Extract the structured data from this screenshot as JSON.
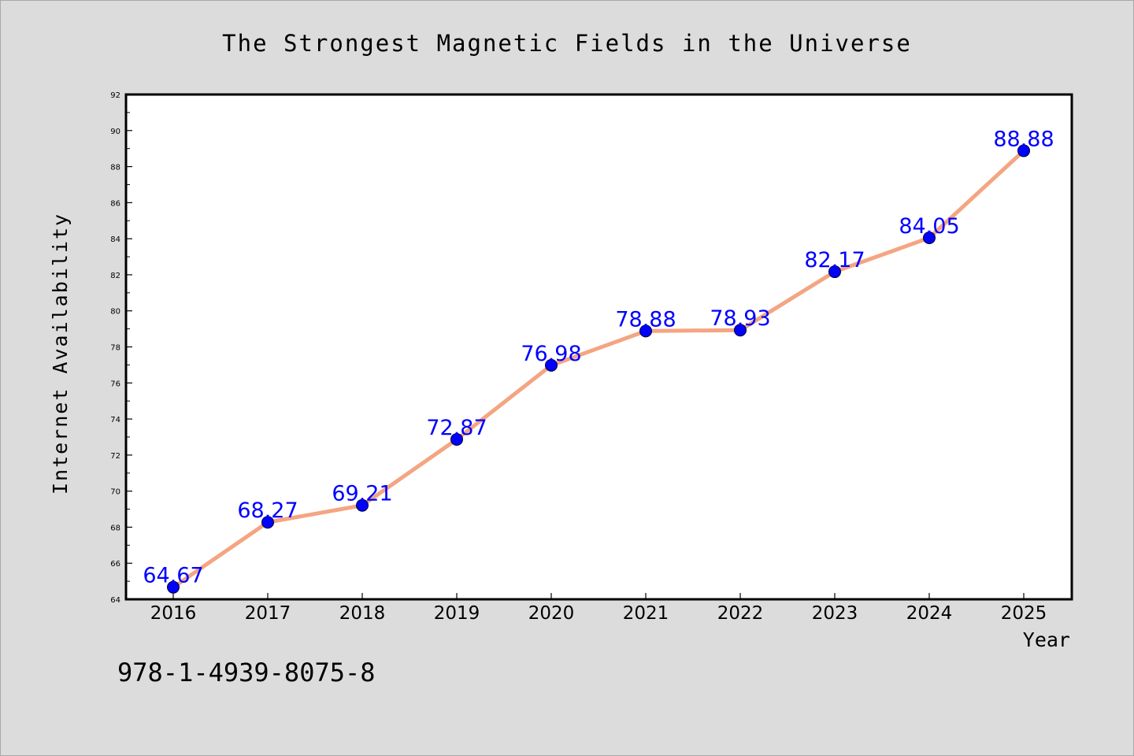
{
  "chart_data": {
    "type": "line",
    "title": "The Strongest Magnetic Fields in the Universe",
    "xlabel": "Year",
    "ylabel": "Internet Availability",
    "categories": [
      "2016",
      "2017",
      "2018",
      "2019",
      "2020",
      "2021",
      "2022",
      "2023",
      "2024",
      "2025"
    ],
    "values": [
      64.67,
      68.27,
      69.21,
      72.87,
      76.98,
      78.88,
      78.93,
      82.17,
      84.05,
      88.88
    ],
    "data_labels": [
      "64.67",
      "68.27",
      "69.21",
      "72.87",
      "76.98",
      "78.88",
      "78.93",
      "82.17",
      "84.05",
      "88.88"
    ],
    "ylim": [
      64,
      92
    ],
    "yticks": [
      64,
      66,
      68,
      70,
      72,
      74,
      76,
      78,
      80,
      82,
      84,
      86,
      88,
      90,
      92
    ],
    "ytick_labels": [
      "64",
      "66",
      "68",
      "70",
      "72",
      "74",
      "76",
      "78",
      "80",
      "82",
      "84",
      "86",
      "88",
      "90",
      "92"
    ],
    "grid": false,
    "line_color": "#f4a582",
    "marker_color": "#0000ff",
    "label_color": "#0000ff"
  },
  "annotation": "978-1-4939-8075-8"
}
